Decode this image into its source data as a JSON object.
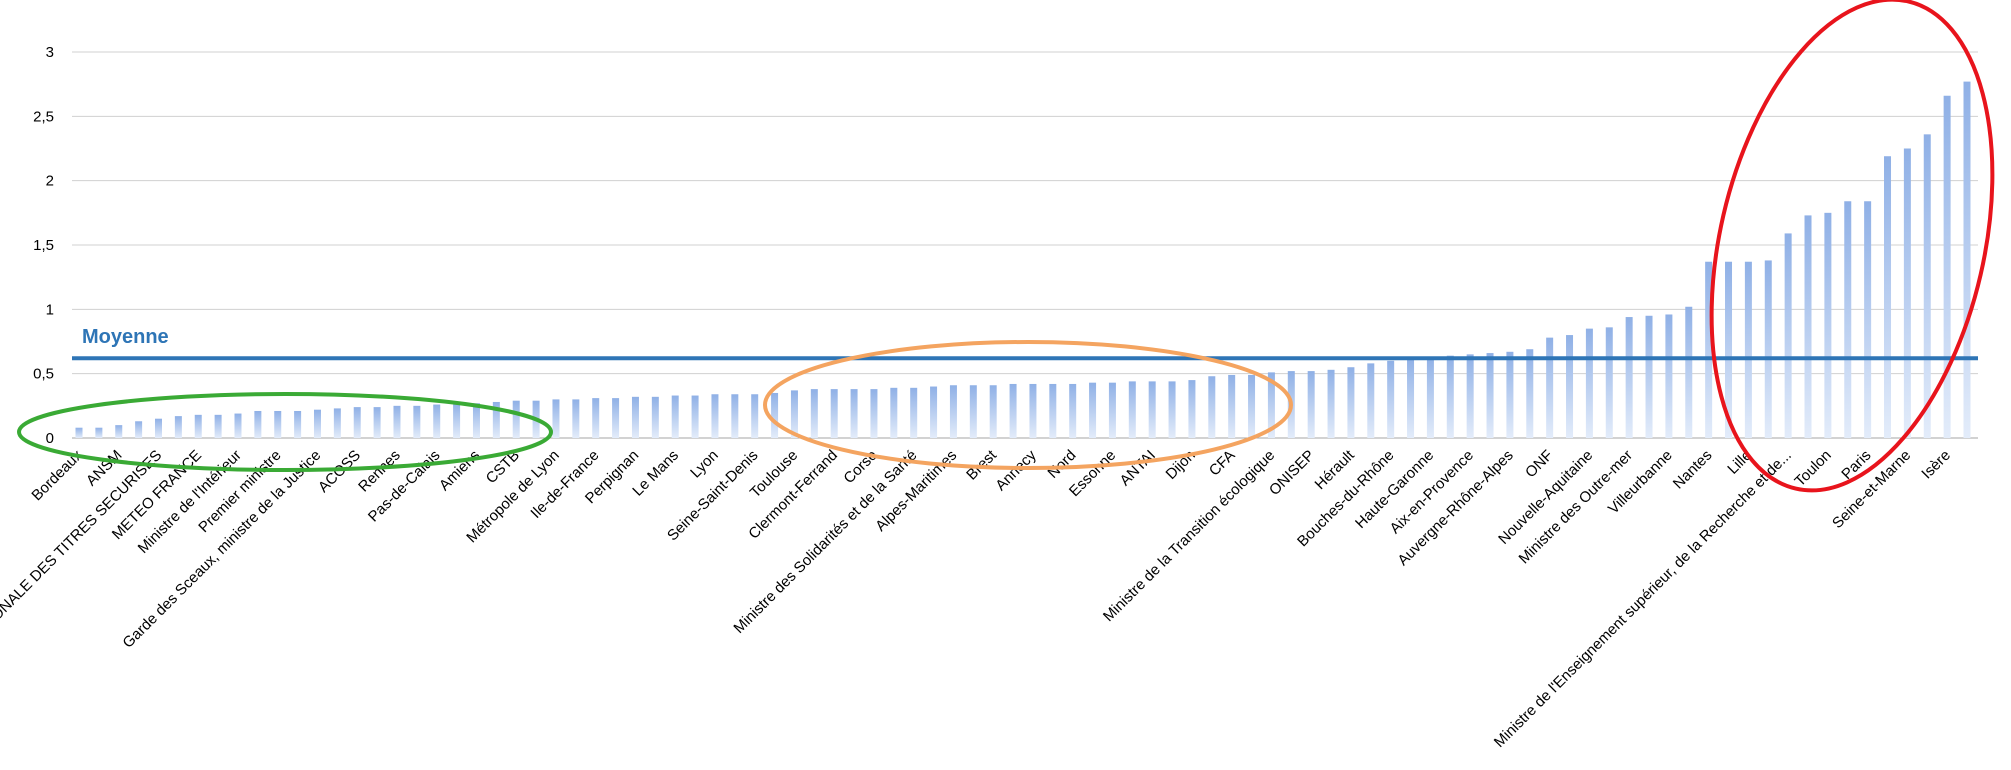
{
  "chart_data": {
    "type": "bar",
    "title": "",
    "xlabel": "",
    "ylabel": "",
    "ylim": [
      0,
      3
    ],
    "yticks": [
      "0",
      "0,5",
      "1",
      "1,5",
      "2",
      "2,5",
      "3"
    ],
    "ytick_values": [
      0,
      0.5,
      1,
      1.5,
      2,
      2.5,
      3
    ],
    "grid": true,
    "bar_color": "#9dbbe8",
    "categories": [
      "Bordeaux",
      "",
      "ANSM",
      "",
      "AGENCE NATIONALE DES TITRES SECURISES",
      "",
      "METEO FRANCE",
      "",
      "Ministre de l'Intérieur",
      "",
      "Premier ministre",
      "",
      "Garde des Sceaux, ministre de la Justice",
      "",
      "ACOSS",
      "",
      "Rennes",
      "",
      "Pas-de-Calais",
      "",
      "Amiens",
      "",
      "CSTB",
      "",
      "Métropole de Lyon",
      "",
      "Ile-de-France",
      "",
      "Perpignan",
      "",
      "Le Mans",
      "",
      "Lyon",
      "",
      "Seine-Saint-Denis",
      "",
      "Toulouse",
      "",
      "Clermont-Ferrand",
      "",
      "Corse",
      "",
      "Ministre des Solidarités et de la Santé",
      "",
      "Alpes-Maritimes",
      "",
      "Brest",
      "",
      "Annecy",
      "",
      "Nord",
      "",
      "Essonne",
      "",
      "ANTAI",
      "",
      "Dijon",
      "",
      "CFA",
      "",
      "Ministre de la Transition écologique",
      "",
      "ONISEP",
      "",
      "Hérault",
      "",
      "Bouches-du-Rhône",
      "",
      "Haute-Garonne",
      "",
      "Aix-en-Provence",
      "",
      "Auvergne-Rhône-Alpes",
      "",
      "ONF",
      "",
      "Nouvelle-Aquitaine",
      "",
      "Ministre des Outre-mer",
      "",
      "Villeurbanne",
      "",
      "Nantes",
      "",
      "Lille",
      "",
      "Ministre de l'Enseignement supérieur, de la Recherche et de...",
      "",
      "Toulon",
      "",
      "Paris",
      "",
      "Seine-et-Marne",
      "",
      "Isère",
      ""
    ],
    "values": [
      0.08,
      0.08,
      0.1,
      0.13,
      0.15,
      0.17,
      0.18,
      0.18,
      0.19,
      0.21,
      0.21,
      0.21,
      0.22,
      0.23,
      0.24,
      0.24,
      0.25,
      0.25,
      0.26,
      0.27,
      0.27,
      0.28,
      0.29,
      0.29,
      0.3,
      0.3,
      0.31,
      0.31,
      0.32,
      0.32,
      0.33,
      0.33,
      0.34,
      0.34,
      0.34,
      0.35,
      0.37,
      0.38,
      0.38,
      0.38,
      0.38,
      0.39,
      0.39,
      0.4,
      0.41,
      0.41,
      0.41,
      0.42,
      0.42,
      0.42,
      0.42,
      0.43,
      0.43,
      0.44,
      0.44,
      0.44,
      0.45,
      0.48,
      0.49,
      0.49,
      0.51,
      0.52,
      0.52,
      0.53,
      0.55,
      0.58,
      0.6,
      0.62,
      0.63,
      0.64,
      0.65,
      0.66,
      0.67,
      0.69,
      0.78,
      0.8,
      0.85,
      0.86,
      0.94,
      0.95,
      0.96,
      1.02,
      1.37,
      1.37,
      1.37,
      1.38,
      1.59,
      1.73,
      1.75,
      1.84,
      1.84,
      2.19,
      2.25,
      2.36,
      2.66,
      2.77
    ],
    "mean_line": {
      "label": "Moyenne",
      "value": 0.62,
      "color": "#2e75b6"
    },
    "annotations": [
      {
        "shape": "ellipse",
        "color": "#3aaa35",
        "from_index": 0,
        "to_index": 24
      },
      {
        "shape": "ellipse",
        "color": "#f4a460",
        "from_index": 35,
        "to_index": 74
      },
      {
        "shape": "ellipse",
        "color": "#e8141c",
        "from_index": 81,
        "to_index": 95
      }
    ]
  }
}
